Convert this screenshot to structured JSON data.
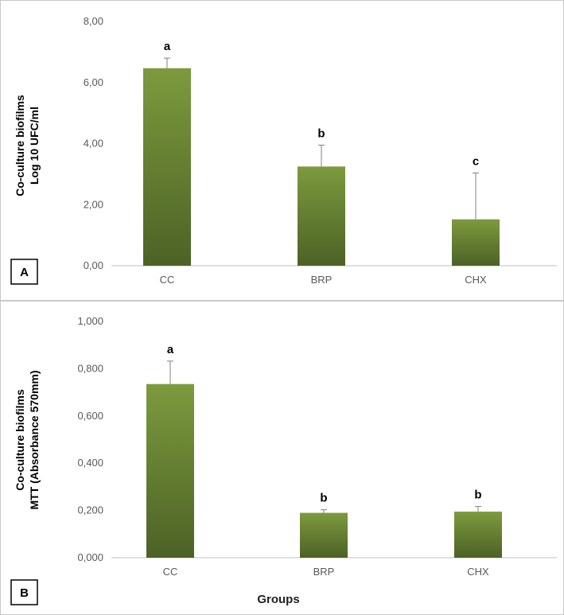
{
  "chart_data": [
    {
      "type": "bar",
      "panel_label": "A",
      "title": "",
      "ylabel_lines": [
        "Co-culture biofilms",
        "Log 10 UFC/ml"
      ],
      "xlabel": "",
      "categories": [
        "CC",
        "BRP",
        "CHX"
      ],
      "values": [
        6.47,
        3.25,
        1.52
      ],
      "errors": [
        0.33,
        0.7,
        1.52
      ],
      "significance_letters": [
        "a",
        "b",
        "c"
      ],
      "ylim": [
        0,
        8
      ],
      "yticks": [
        0,
        2,
        4,
        6,
        8
      ],
      "ytick_labels": [
        "0,00",
        "2,00",
        "4,00",
        "6,00",
        "8,00"
      ],
      "grid": false
    },
    {
      "type": "bar",
      "panel_label": "B",
      "title": "",
      "ylabel_lines": [
        "Co-culture biofilms",
        "MTT (Absorbance 570mm)"
      ],
      "xlabel": "Groups",
      "categories": [
        "CC",
        "BRP",
        "CHX"
      ],
      "values": [
        0.735,
        0.19,
        0.195
      ],
      "errors": [
        0.097,
        0.013,
        0.022
      ],
      "significance_letters": [
        "a",
        "b",
        "b"
      ],
      "ylim": [
        0,
        1
      ],
      "yticks": [
        0,
        0.2,
        0.4,
        0.6,
        0.8,
        1
      ],
      "ytick_labels": [
        "0,000",
        "0,200",
        "0,400",
        "0,600",
        "0,800",
        "1,000"
      ],
      "grid": false
    }
  ],
  "colors": {
    "bar_light": "#7d9a3e",
    "bar_dark": "#4c6226",
    "axis": "#bfbfbf",
    "error_bar": "#808080"
  }
}
